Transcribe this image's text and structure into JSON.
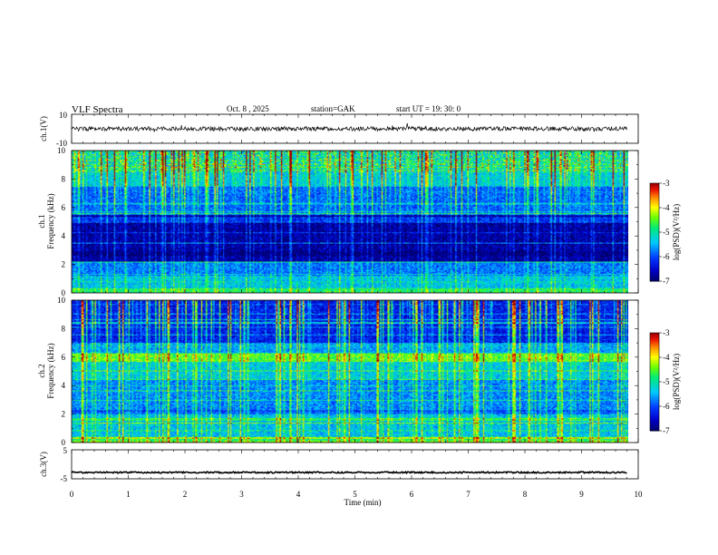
{
  "header": {
    "title": "VLF  Spectra",
    "date": "Oct. 8  , 2025",
    "station": "station=GAK",
    "start": "start  UT  =    19: 30: 0"
  },
  "chart_data": [
    {
      "type": "line",
      "name": "ch1-waveform",
      "ylabel": "ch.1(V)",
      "ylim": [
        -10,
        10
      ],
      "yticks": [
        "10",
        "-10"
      ],
      "xlim": [
        0,
        10
      ],
      "level": 0,
      "noise_amplitude": 1.5
    },
    {
      "type": "heatmap",
      "name": "ch1-spectrogram",
      "ylabel": "ch.1\nFrequency  (kHz)",
      "ylabel_lines": [
        "ch.1",
        "Frequency  (kHz)"
      ],
      "ylim": [
        0,
        10
      ],
      "yticks": [
        "10",
        "8",
        "6",
        "4",
        "2",
        "0"
      ],
      "xlim": [
        0,
        9.8
      ],
      "colorbar": {
        "label": "log(PSD)(V²/Hz)",
        "range": [
          -7,
          -3
        ],
        "ticks": [
          "-3",
          "-4",
          "-5",
          "-6",
          "-7"
        ]
      }
    },
    {
      "type": "heatmap",
      "name": "ch2-spectrogram",
      "ylabel_lines": [
        "ch.2",
        "Frequency  (kHz)"
      ],
      "ylim": [
        0,
        10
      ],
      "yticks": [
        "10",
        "8",
        "6",
        "4",
        "2",
        "0"
      ],
      "xlim": [
        0,
        9.8
      ],
      "colorbar": {
        "label": "log(PSD)(V²/Hz)",
        "range": [
          -7,
          -3
        ],
        "ticks": [
          "-3",
          "-4",
          "-5",
          "-6",
          "-7"
        ]
      }
    },
    {
      "type": "line",
      "name": "ch3-waveform",
      "ylabel": "ch.3(V)",
      "ylim": [
        -5,
        5
      ],
      "yticks": [
        "5",
        "-5"
      ],
      "xlim": [
        0,
        10
      ],
      "level": -2.8
    }
  ],
  "xaxis": {
    "label": "Time  (min)",
    "ticks": [
      "0",
      "1",
      "2",
      "3",
      "4",
      "5",
      "6",
      "7",
      "8",
      "9",
      "10"
    ]
  }
}
